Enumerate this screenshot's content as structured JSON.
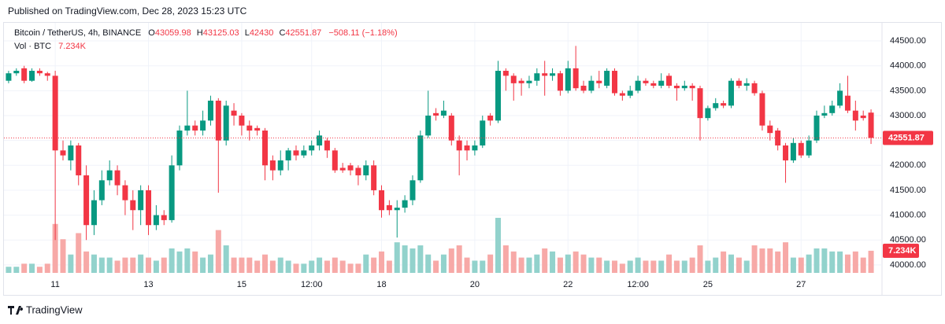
{
  "chart_data": {
    "type": "candlestick",
    "published": "Published on TradingView.com, Dec 28, 2023 15:23 UTC",
    "title": "Bitcoin / TetherUS, 4h, BINANCE",
    "ohlc_labels": [
      "O",
      "H",
      "L",
      "C"
    ],
    "change_label": "−508.11 (−1.18%)",
    "volume_title": "Vol · BTC",
    "last_volume_label": "7.234K",
    "brand": "TradingView",
    "up_color": "#089981",
    "down_color": "#f23645",
    "volume_up_color": "#92d2cc",
    "volume_down_color": "#f7a9a7",
    "grid": true,
    "ylim": [
      39840,
      44880
    ],
    "yticks": [
      {
        "value": 40000,
        "label": "40000.00"
      },
      {
        "value": 40500,
        "label": "40500.00"
      },
      {
        "value": 41000,
        "label": "41000.00"
      },
      {
        "value": 41500,
        "label": "41500.00"
      },
      {
        "value": 42000,
        "label": "42000.00"
      },
      {
        "value": 42500,
        "label": "42500.00"
      },
      {
        "value": 43000,
        "label": "43000.00"
      },
      {
        "value": 43500,
        "label": "43500.00"
      },
      {
        "value": 44000,
        "label": "44000.00"
      },
      {
        "value": 44500,
        "label": "44500.00"
      }
    ],
    "categories": [
      null,
      null,
      null,
      null,
      null,
      null,
      "11",
      null,
      null,
      null,
      null,
      null,
      null,
      null,
      null,
      null,
      null,
      null,
      "13",
      null,
      null,
      null,
      null,
      null,
      null,
      null,
      null,
      null,
      null,
      null,
      "15",
      null,
      null,
      null,
      null,
      null,
      null,
      null,
      null,
      "12:00",
      null,
      null,
      null,
      null,
      null,
      null,
      null,
      null,
      "18",
      null,
      null,
      null,
      null,
      null,
      null,
      null,
      null,
      null,
      null,
      null,
      "20",
      null,
      null,
      null,
      null,
      null,
      null,
      null,
      null,
      null,
      null,
      null,
      "22",
      null,
      null,
      null,
      null,
      null,
      null,
      null,
      null,
      "12:00",
      null,
      null,
      null,
      null,
      null,
      null,
      null,
      null,
      "25",
      null,
      null,
      null,
      null,
      null,
      null,
      null,
      null,
      null,
      null,
      null,
      "27",
      null,
      null,
      null,
      null,
      null,
      null,
      null,
      null,
      null
    ],
    "open": [
      43700,
      43850,
      43950,
      43700,
      43900,
      43850,
      43800,
      42300,
      42100,
      42400,
      41800,
      40800,
      41300,
      41700,
      41900,
      41600,
      41300,
      41100,
      41500,
      40800,
      41000,
      40900,
      42000,
      42700,
      42800,
      42700,
      42900,
      43300,
      42500,
      43100,
      43000,
      42800,
      42750,
      42700,
      42100,
      41900,
      42100,
      42300,
      42200,
      42300,
      42400,
      42500,
      42300,
      41950,
      42000,
      41950,
      41800,
      42000,
      41500,
      41200,
      41100,
      41150,
      41300,
      41700,
      42600,
      43050,
      43000,
      43000,
      42500,
      42400,
      42300,
      42400,
      43000,
      42900,
      43900,
      43800,
      43700,
      43650,
      43700,
      43850,
      43800,
      43850,
      43500,
      43950,
      43600,
      43500,
      43700,
      43600,
      43900,
      43450,
      43400,
      43500,
      43700,
      43650,
      43600,
      43800,
      43600,
      43550,
      43600,
      43550,
      42950,
      43150,
      43250,
      43200,
      43700,
      43600,
      43650,
      43450,
      42800,
      42700,
      42400,
      42100,
      42450,
      42200,
      42500,
      43000,
      43050,
      43200,
      43400,
      43100,
      43000,
      43059.98
    ],
    "high": [
      43900,
      43950,
      44000,
      43950,
      43950,
      43880,
      43900,
      42500,
      42500,
      42450,
      42000,
      41500,
      41900,
      42100,
      42000,
      41700,
      41500,
      41600,
      41600,
      41200,
      41100,
      42200,
      42800,
      43500,
      42900,
      43100,
      43400,
      43350,
      43300,
      43250,
      43050,
      42900,
      42800,
      42750,
      42200,
      42300,
      42350,
      42400,
      42400,
      42500,
      42700,
      42550,
      42350,
      42050,
      42050,
      42000,
      42100,
      42100,
      41600,
      41300,
      41300,
      41400,
      41800,
      42700,
      43500,
      43150,
      43300,
      43050,
      42600,
      42500,
      42500,
      43000,
      43050,
      44100,
      43950,
      43850,
      43750,
      43800,
      43950,
      44100,
      43950,
      43900,
      44100,
      44400,
      43700,
      43800,
      43900,
      43950,
      43950,
      43500,
      43600,
      43800,
      43750,
      43700,
      43850,
      43850,
      43650,
      43700,
      43650,
      43600,
      43200,
      43350,
      43300,
      43750,
      43750,
      43750,
      43700,
      43500,
      42900,
      42750,
      42450,
      42550,
      42500,
      42600,
      43100,
      43200,
      43300,
      43650,
      43800,
      43300,
      43100,
      43125.03
    ],
    "low": [
      43650,
      43800,
      43650,
      43680,
      43800,
      43700,
      40500,
      42100,
      41900,
      41600,
      40500,
      40600,
      41200,
      41600,
      41400,
      41000,
      40700,
      40800,
      40600,
      40700,
      40800,
      40850,
      41900,
      42600,
      42600,
      42600,
      42800,
      41450,
      42400,
      42800,
      42600,
      42500,
      42600,
      41700,
      41700,
      41800,
      41900,
      42100,
      42150,
      42200,
      42300,
      42150,
      41850,
      41850,
      41800,
      41600,
      41700,
      41400,
      40950,
      41000,
      40550,
      41050,
      41200,
      41650,
      42550,
      42900,
      42950,
      42400,
      41800,
      42100,
      42200,
      42350,
      42800,
      42850,
      43500,
      43300,
      43400,
      43550,
      43600,
      43400,
      43700,
      43400,
      43450,
      43500,
      43450,
      43450,
      43550,
      43550,
      43400,
      43300,
      43350,
      43450,
      43600,
      43550,
      43550,
      43550,
      43300,
      43500,
      43300,
      42500,
      42900,
      43100,
      43150,
      43150,
      43550,
      43500,
      43400,
      42700,
      42500,
      42300,
      41650,
      42050,
      42150,
      42150,
      42450,
      42950,
      43000,
      43150,
      43050,
      42700,
      42900,
      42430
    ],
    "close": [
      43850,
      43900,
      43700,
      43900,
      43850,
      43800,
      42300,
      42200,
      42400,
      41800,
      40800,
      41300,
      41700,
      41900,
      41600,
      41300,
      41100,
      41500,
      40800,
      41000,
      40900,
      42000,
      42700,
      42800,
      42700,
      42900,
      43300,
      42500,
      43200,
      43000,
      42800,
      42700,
      42700,
      42000,
      41900,
      42100,
      42300,
      42200,
      42300,
      42400,
      42600,
      42300,
      41900,
      41900,
      41900,
      41800,
      42000,
      41500,
      41100,
      41100,
      41150,
      41300,
      41700,
      42600,
      43000,
      43000,
      43100,
      42500,
      42300,
      42300,
      42400,
      42900,
      42900,
      43900,
      43800,
      43650,
      43650,
      43700,
      43850,
      43800,
      43850,
      43500,
      43950,
      43550,
      43500,
      43700,
      43650,
      43900,
      43450,
      43400,
      43500,
      43700,
      43650,
      43600,
      43700,
      43600,
      43550,
      43600,
      43550,
      42950,
      43150,
      43250,
      43200,
      43700,
      43600,
      43650,
      43450,
      42800,
      42650,
      42400,
      42100,
      42450,
      42200,
      42500,
      43000,
      43050,
      43200,
      43500,
      43100,
      42900,
      42950,
      42551.87
    ],
    "volume": [
      2,
      2,
      3,
      3,
      2,
      3,
      16,
      11,
      6,
      13,
      7,
      6,
      5,
      5,
      4,
      5,
      5,
      6,
      5,
      4,
      5,
      8,
      7,
      8,
      7,
      5,
      6,
      14,
      9,
      5,
      5,
      5,
      4,
      6,
      4,
      5,
      4,
      3,
      3,
      4,
      5,
      4,
      5,
      4,
      3,
      3,
      6,
      5,
      7,
      4,
      10,
      9,
      8,
      9,
      6,
      4,
      6,
      8,
      9,
      5,
      4,
      4,
      6,
      18,
      9,
      7,
      5,
      5,
      6,
      8,
      7,
      5,
      6,
      7,
      6,
      5,
      5,
      4,
      4,
      3,
      4,
      5,
      4,
      4,
      4,
      6,
      4,
      4,
      5,
      9,
      4,
      5,
      7,
      6,
      5,
      4,
      9,
      8,
      8,
      7,
      10,
      5,
      5,
      6,
      8,
      8,
      7,
      7,
      6,
      7,
      5,
      7.234
    ]
  }
}
